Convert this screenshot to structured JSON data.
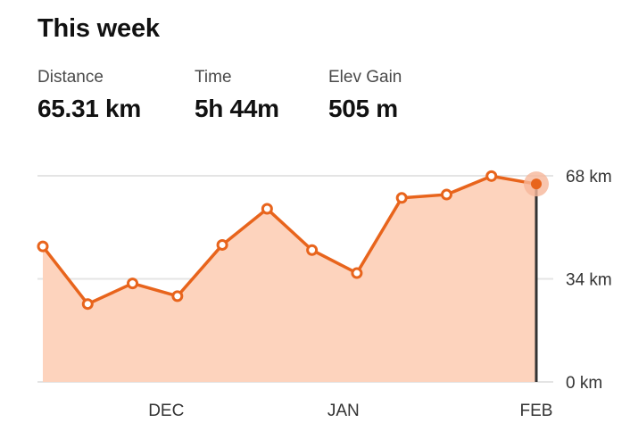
{
  "header": {
    "title": "This week"
  },
  "stats": {
    "distance": {
      "label": "Distance",
      "value": "65.31 km"
    },
    "time": {
      "label": "Time",
      "value": "5h 44m"
    },
    "elev_gain": {
      "label": "Elev Gain",
      "value": "505 m"
    }
  },
  "colors": {
    "line": "#e8641c",
    "fill": "#fdd3bd",
    "grid": "#e4e4e4",
    "marker_halo": "#f6b79a",
    "cursor": "#333333"
  },
  "chart_data": {
    "type": "area",
    "title": "",
    "xlabel": "",
    "ylabel": "",
    "ylim": [
      0,
      68
    ],
    "yticks": [
      {
        "value": 0,
        "label": "0 km"
      },
      {
        "value": 34,
        "label": "34 km"
      },
      {
        "value": 68,
        "label": "68 km"
      }
    ],
    "xtick_labels": [
      {
        "index": 2.75,
        "label": "DEC"
      },
      {
        "index": 6.7,
        "label": "JAN"
      },
      {
        "index": 11,
        "label": "FEB"
      }
    ],
    "series": [
      {
        "values": [
          44.7,
          25.7,
          32.5,
          28.3,
          45.2,
          57.1,
          43.5,
          35.9,
          60.7,
          61.8,
          67.9,
          65.3
        ]
      }
    ],
    "grid": true,
    "selected_index": 11
  }
}
